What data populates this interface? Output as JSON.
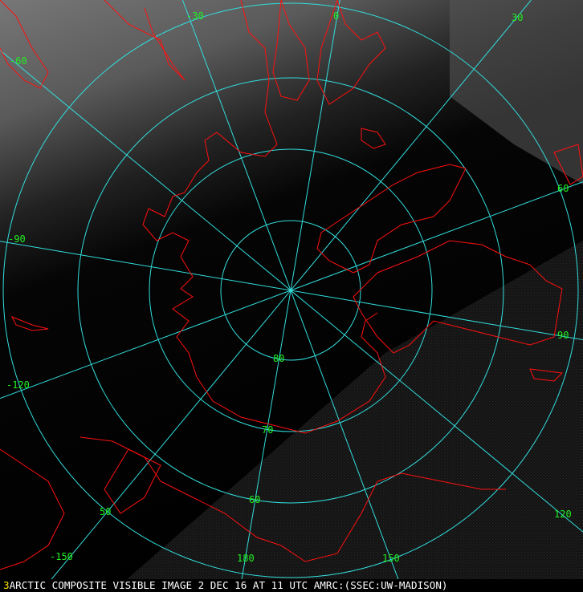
{
  "map": {
    "projection": "polar stereographic, north pole",
    "grid_color": "#33dddd",
    "coastline_color": "#ff1010",
    "label_color": "#22ee22",
    "latitude_labels": [
      "80",
      "70",
      "60",
      "50"
    ],
    "longitude_labels": [
      "0",
      "30",
      "60",
      "90",
      "120",
      "150",
      "180",
      "-150",
      "-120",
      "-90",
      "-60",
      "-30"
    ]
  },
  "caption": {
    "frame_number": "3",
    "text": "ARCTIC COMPOSITE VISIBLE IMAGE 2 DEC 16 AT 11 UTC AMRC:(SSEC:UW-MADISON)"
  }
}
